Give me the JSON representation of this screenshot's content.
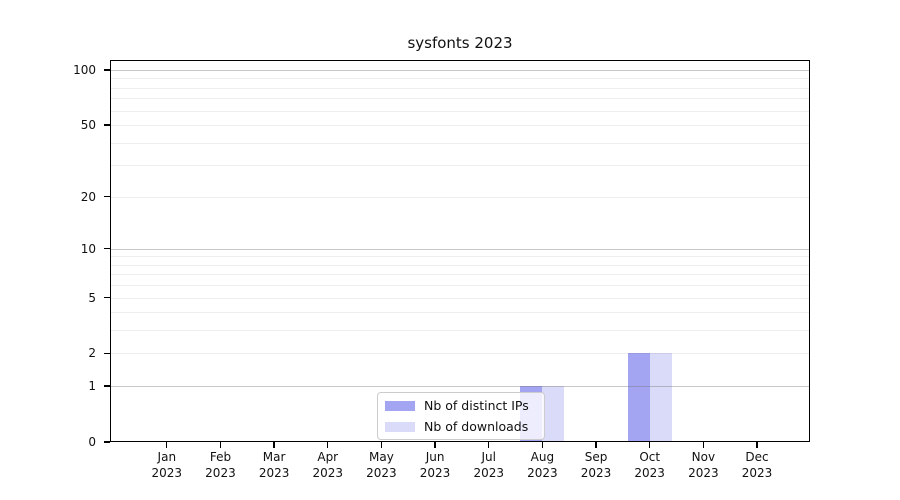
{
  "chart_data": {
    "type": "bar",
    "title": "sysfonts 2023",
    "categories": [
      "Jan 2023",
      "Feb 2023",
      "Mar 2023",
      "Apr 2023",
      "May 2023",
      "Jun 2023",
      "Jul 2023",
      "Aug 2023",
      "Sep 2023",
      "Oct 2023",
      "Nov 2023",
      "Dec 2023"
    ],
    "series": [
      {
        "name": "Nb of distinct IPs",
        "color": "#a3a5f3",
        "values": [
          0,
          0,
          0,
          0,
          0,
          0,
          0,
          1,
          0,
          2,
          0,
          0
        ]
      },
      {
        "name": "Nb of downloads",
        "color": "#d9dbf9",
        "values": [
          0,
          0,
          0,
          0,
          0,
          0,
          0,
          1,
          0,
          2,
          0,
          0
        ]
      }
    ],
    "xlabel": "",
    "ylabel": "",
    "yscale": "log1p",
    "ylim": [
      0,
      113
    ],
    "y_tick_values": [
      0,
      1,
      2,
      5,
      10,
      20,
      50,
      100
    ],
    "y_major_gridlines": [
      1,
      10,
      100
    ],
    "y_minor_gridlines": [
      2,
      3,
      4,
      5,
      6,
      7,
      8,
      9,
      20,
      30,
      40,
      50,
      60,
      70,
      80,
      90
    ],
    "grid": true,
    "legend_position": "lower center"
  },
  "legend": {
    "items": [
      {
        "label": "Nb of distinct IPs",
        "color": "#a3a5f3"
      },
      {
        "label": "Nb of downloads",
        "color": "#d9dbf9"
      }
    ]
  },
  "colors": {
    "background": "#ffffff",
    "bar_distinct_ips": "#a3a5f3",
    "bar_downloads": "#d9dbf9",
    "axis": "#000000",
    "major_grid": "#c6c6c6",
    "minor_grid": "#eeeeee",
    "legend_border": "#cccccc"
  }
}
